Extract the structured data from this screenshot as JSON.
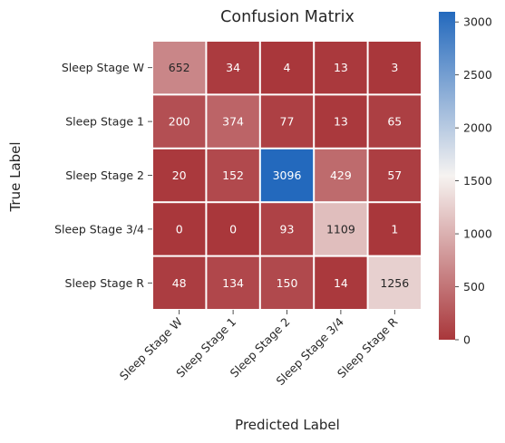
{
  "chart_data": {
    "type": "heatmap",
    "title": "Confusion Matrix",
    "xlabel": "Predicted Label",
    "ylabel": "True Label",
    "x_categories": [
      "Sleep Stage W",
      "Sleep Stage 1",
      "Sleep Stage 2",
      "Sleep Stage 3/4",
      "Sleep Stage R"
    ],
    "y_categories": [
      "Sleep Stage W",
      "Sleep Stage 1",
      "Sleep Stage 2",
      "Sleep Stage 3/4",
      "Sleep Stage R"
    ],
    "values": [
      [
        652,
        34,
        4,
        13,
        3
      ],
      [
        200,
        374,
        77,
        13,
        65
      ],
      [
        20,
        152,
        3096,
        429,
        57
      ],
      [
        0,
        0,
        93,
        1109,
        1
      ],
      [
        48,
        134,
        150,
        14,
        1256
      ]
    ],
    "colorbar": {
      "range": [
        0,
        3096
      ],
      "ticks": [
        0,
        500,
        1000,
        1500,
        2000,
        2500,
        3000
      ],
      "colormap": "vlag_r",
      "low_color": "#a9373b",
      "mid_color": "#f6f3f1",
      "high_color": "#2369bd"
    },
    "grid": false
  }
}
